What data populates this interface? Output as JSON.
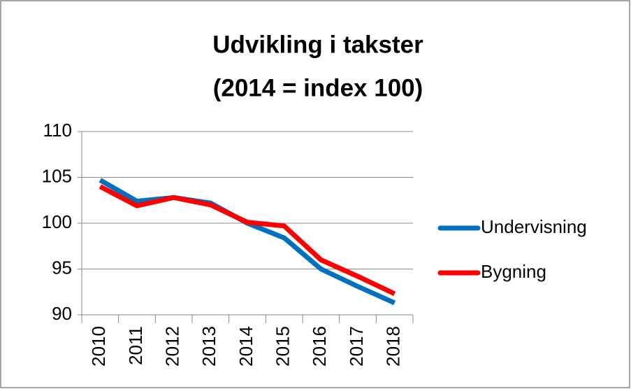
{
  "chart_data": {
    "type": "line",
    "title": [
      "Udvikling i takster",
      "(2014 = index 100)"
    ],
    "categories": [
      "2010",
      "2011",
      "2012",
      "2013",
      "2014",
      "2015",
      "2016",
      "2017",
      "2018"
    ],
    "series": [
      {
        "name": "Undervisning",
        "color": "#0070c0",
        "values": [
          104.7,
          102.4,
          102.8,
          102.2,
          100.0,
          98.4,
          95.0,
          93.1,
          91.3
        ]
      },
      {
        "name": "Bygning",
        "color": "#ff0000",
        "values": [
          104.0,
          101.9,
          102.8,
          102.0,
          100.1,
          99.7,
          96.0,
          94.2,
          92.3
        ]
      }
    ],
    "ylim": [
      90,
      110
    ],
    "yticks": [
      90,
      95,
      100,
      105,
      110
    ],
    "grid": true,
    "legend": "right"
  }
}
